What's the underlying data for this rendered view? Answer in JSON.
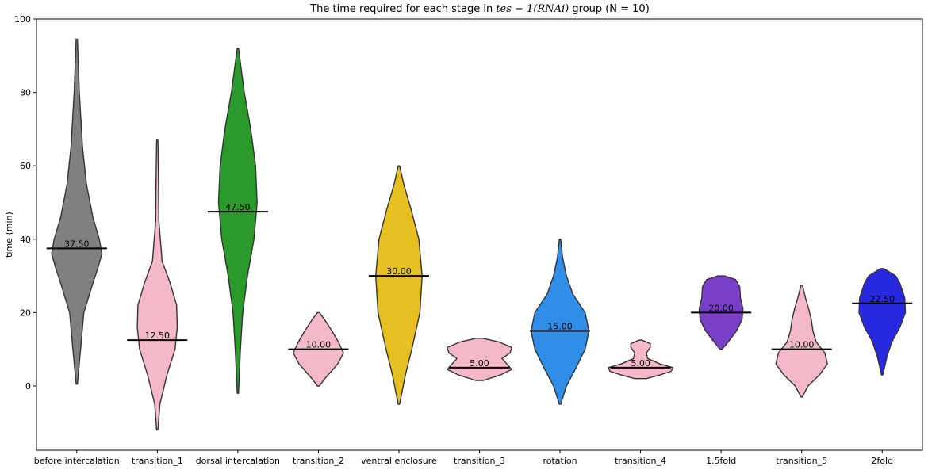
{
  "chart_data": {
    "type": "violin",
    "title_prefix": "The time required for each stage in ",
    "title_math": "tes − 1(RNAi)",
    "title_suffix": " group (N = 10)",
    "ylabel": "time (min)",
    "xlabel": "",
    "ylim": [
      -17.5,
      100
    ],
    "yticks": [
      0,
      20,
      40,
      60,
      80,
      100
    ],
    "grid": false,
    "categories": [
      "before intercalation",
      "transition_1",
      "dorsal intercalation",
      "transition_2",
      "ventral enclosure",
      "transition_3",
      "rotation",
      "transition_4",
      "1.5fold",
      "transition_5",
      "2fold"
    ],
    "colors": [
      "#808080",
      "#f5b8c8",
      "#2a9a2a",
      "#f5b8c8",
      "#e6c020",
      "#f5b8c8",
      "#2f8ee8",
      "#f5b8c8",
      "#7a3fc8",
      "#f5b8c8",
      "#2828e0"
    ],
    "medians": [
      37.5,
      12.5,
      47.5,
      10.0,
      30.0,
      5.0,
      15.0,
      5.0,
      20.0,
      10.0,
      22.5
    ],
    "median_labels": [
      "37.50",
      "12.50",
      "47.50",
      "10.00",
      "30.00",
      "5.00",
      "15.00",
      "5.00",
      "20.00",
      "10.00",
      "22.50"
    ],
    "violins": [
      {
        "ymin": 0.5,
        "ymax": 94.5,
        "profile": [
          [
            0.5,
            0.02
          ],
          [
            10,
            0.12
          ],
          [
            20,
            0.22
          ],
          [
            28,
            0.5
          ],
          [
            32,
            0.65
          ],
          [
            36,
            0.78
          ],
          [
            40,
            0.7
          ],
          [
            46,
            0.5
          ],
          [
            55,
            0.3
          ],
          [
            65,
            0.18
          ],
          [
            80,
            0.08
          ],
          [
            94.5,
            0.02
          ]
        ]
      },
      {
        "ymin": -12,
        "ymax": 67,
        "profile": [
          [
            -12,
            0.02
          ],
          [
            -5,
            0.08
          ],
          [
            3,
            0.3
          ],
          [
            10,
            0.55
          ],
          [
            16,
            0.62
          ],
          [
            22,
            0.6
          ],
          [
            28,
            0.4
          ],
          [
            34,
            0.15
          ],
          [
            45,
            0.05
          ],
          [
            55,
            0.04
          ],
          [
            67,
            0.02
          ]
        ]
      },
      {
        "ymin": -2,
        "ymax": 92,
        "profile": [
          [
            -2,
            0.02
          ],
          [
            10,
            0.08
          ],
          [
            20,
            0.15
          ],
          [
            30,
            0.3
          ],
          [
            40,
            0.5
          ],
          [
            50,
            0.6
          ],
          [
            60,
            0.55
          ],
          [
            70,
            0.4
          ],
          [
            80,
            0.2
          ],
          [
            92,
            0.02
          ]
        ]
      },
      {
        "ymin": 0,
        "ymax": 20,
        "profile": [
          [
            0,
            0.03
          ],
          [
            2,
            0.2
          ],
          [
            4,
            0.4
          ],
          [
            6,
            0.6
          ],
          [
            9,
            0.78
          ],
          [
            12,
            0.62
          ],
          [
            15,
            0.42
          ],
          [
            18,
            0.2
          ],
          [
            20,
            0.03
          ]
        ]
      },
      {
        "ymin": -5,
        "ymax": 60,
        "profile": [
          [
            -5,
            0.02
          ],
          [
            3,
            0.2
          ],
          [
            10,
            0.4
          ],
          [
            20,
            0.65
          ],
          [
            30,
            0.72
          ],
          [
            40,
            0.62
          ],
          [
            48,
            0.38
          ],
          [
            55,
            0.15
          ],
          [
            60,
            0.02
          ]
        ]
      },
      {
        "ymin": 1.5,
        "ymax": 13,
        "profile": [
          [
            1.5,
            0.12
          ],
          [
            3,
            0.65
          ],
          [
            4.5,
            1.0
          ],
          [
            6,
            0.85
          ],
          [
            7.5,
            0.7
          ],
          [
            9,
            0.95
          ],
          [
            10.5,
            1.0
          ],
          [
            12,
            0.6
          ],
          [
            13,
            0.1
          ]
        ]
      },
      {
        "ymin": -5,
        "ymax": 40,
        "profile": [
          [
            -5,
            0.02
          ],
          [
            0,
            0.2
          ],
          [
            5,
            0.5
          ],
          [
            10,
            0.78
          ],
          [
            15,
            0.9
          ],
          [
            20,
            0.78
          ],
          [
            25,
            0.4
          ],
          [
            30,
            0.2
          ],
          [
            35,
            0.08
          ],
          [
            40,
            0.02
          ]
        ]
      },
      {
        "ymin": 2,
        "ymax": 12.5,
        "profile": [
          [
            2,
            0.18
          ],
          [
            3,
            0.6
          ],
          [
            4,
            0.95
          ],
          [
            5,
            1.0
          ],
          [
            6,
            0.6
          ],
          [
            7.5,
            0.22
          ],
          [
            9,
            0.18
          ],
          [
            10.5,
            0.3
          ],
          [
            11.5,
            0.3
          ],
          [
            12.5,
            0.05
          ]
        ]
      },
      {
        "ymin": 10,
        "ymax": 30,
        "profile": [
          [
            10,
            0.03
          ],
          [
            12,
            0.22
          ],
          [
            15,
            0.48
          ],
          [
            18,
            0.65
          ],
          [
            21,
            0.68
          ],
          [
            24,
            0.6
          ],
          [
            27,
            0.58
          ],
          [
            29,
            0.45
          ],
          [
            30,
            0.1
          ]
        ]
      },
      {
        "ymin": -3,
        "ymax": 27.5,
        "profile": [
          [
            -3,
            0.02
          ],
          [
            0,
            0.2
          ],
          [
            3,
            0.55
          ],
          [
            6,
            0.8
          ],
          [
            9,
            0.72
          ],
          [
            12,
            0.45
          ],
          [
            15,
            0.35
          ],
          [
            18,
            0.3
          ],
          [
            21,
            0.22
          ],
          [
            24,
            0.12
          ],
          [
            27.5,
            0.02
          ]
        ]
      },
      {
        "ymin": 3,
        "ymax": 32,
        "profile": [
          [
            3,
            0.02
          ],
          [
            8,
            0.15
          ],
          [
            12,
            0.3
          ],
          [
            16,
            0.55
          ],
          [
            20,
            0.72
          ],
          [
            24,
            0.7
          ],
          [
            28,
            0.55
          ],
          [
            30,
            0.42
          ],
          [
            32,
            0.05
          ]
        ]
      }
    ]
  }
}
